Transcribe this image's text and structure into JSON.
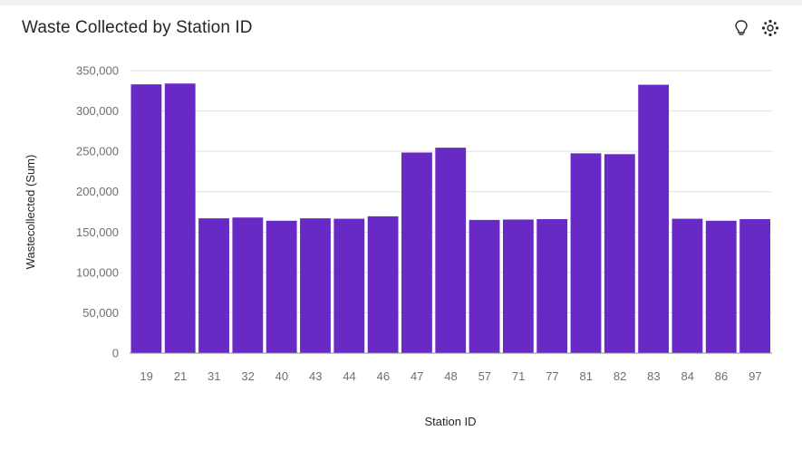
{
  "header": {
    "title": "Waste Collected by Station ID"
  },
  "toolbar": {
    "insight_icon": "lightbulb-icon",
    "settings_icon": "gear-icon"
  },
  "colors": {
    "bar": "#6929c4",
    "grid": "#e0e0e0"
  },
  "chart_data": {
    "type": "bar",
    "title": "Waste Collected by Station ID",
    "xlabel": "Station ID",
    "ylabel": "Wastecollected (Sum)",
    "ylim": [
      0,
      350000
    ],
    "yticks": [
      0,
      50000,
      100000,
      150000,
      200000,
      250000,
      300000,
      350000
    ],
    "ytick_labels": [
      "0",
      "50,000",
      "100,000",
      "150,000",
      "200,000",
      "250,000",
      "300,000",
      "350,000"
    ],
    "grid": true,
    "categories": [
      "19",
      "21",
      "31",
      "32",
      "40",
      "43",
      "44",
      "46",
      "47",
      "48",
      "57",
      "71",
      "77",
      "81",
      "82",
      "83",
      "84",
      "86",
      "97"
    ],
    "values": [
      333000,
      334000,
      167000,
      168000,
      164000,
      167000,
      166500,
      169500,
      248500,
      254500,
      165000,
      165500,
      166000,
      247500,
      246500,
      332500,
      166500,
      164000,
      166000
    ]
  }
}
